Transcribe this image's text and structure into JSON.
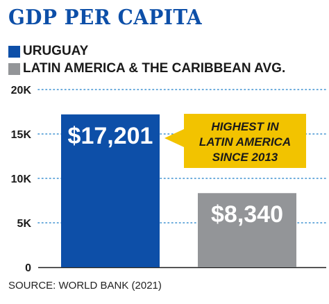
{
  "chart_data": {
    "type": "bar",
    "title": "GDP PER CAPITA",
    "categories": [
      "URUGUAY",
      "LATIN AMERICA & THE CARIBBEAN AVG."
    ],
    "values": [
      17201,
      8340
    ],
    "value_labels": [
      "$17,201",
      "$8,340"
    ],
    "colors": [
      "#0d4fa8",
      "#939598"
    ],
    "ylim": [
      0,
      20000
    ],
    "yticks": [
      0,
      5000,
      10000,
      15000,
      20000
    ],
    "ytick_labels": [
      "0",
      "5K",
      "10K",
      "15K",
      "20K"
    ],
    "grid": true,
    "annotation": {
      "lines": [
        "HIGHEST IN",
        "LATIN AMERICA",
        "SINCE 2013"
      ],
      "color": "#f2c300"
    },
    "source": "SOURCE: WORLD BANK (2021)"
  }
}
